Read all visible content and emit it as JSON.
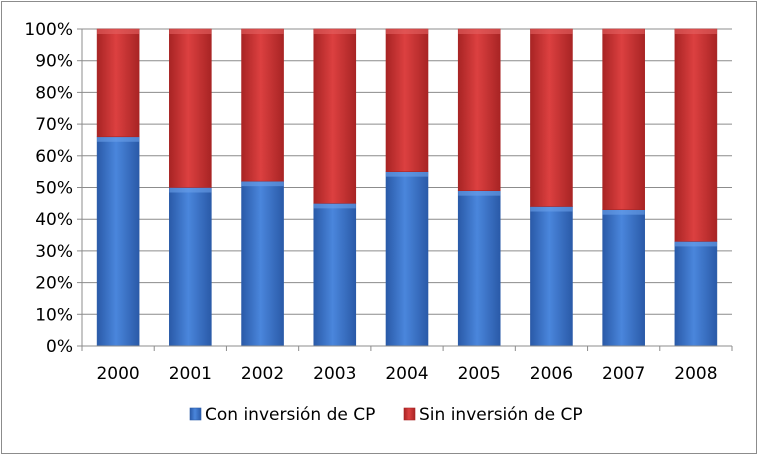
{
  "chart_data": {
    "type": "bar",
    "stacked": true,
    "percent": true,
    "categories": [
      "2000",
      "2001",
      "2002",
      "2003",
      "2004",
      "2005",
      "2006",
      "2007",
      "2008"
    ],
    "series": [
      {
        "name": "Con inversión de CP",
        "color": "#3a72c8",
        "values": [
          66,
          50,
          52,
          45,
          55,
          49,
          44,
          43,
          33
        ]
      },
      {
        "name": "Sin inversión de CP",
        "color": "#c93232",
        "values": [
          34,
          50,
          48,
          55,
          45,
          51,
          56,
          57,
          67
        ]
      }
    ],
    "yticks": [
      "0%",
      "10%",
      "20%",
      "30%",
      "40%",
      "50%",
      "60%",
      "70%",
      "80%",
      "90%",
      "100%"
    ],
    "ylim": [
      0,
      100
    ],
    "grid": true,
    "legend": "bottom"
  }
}
